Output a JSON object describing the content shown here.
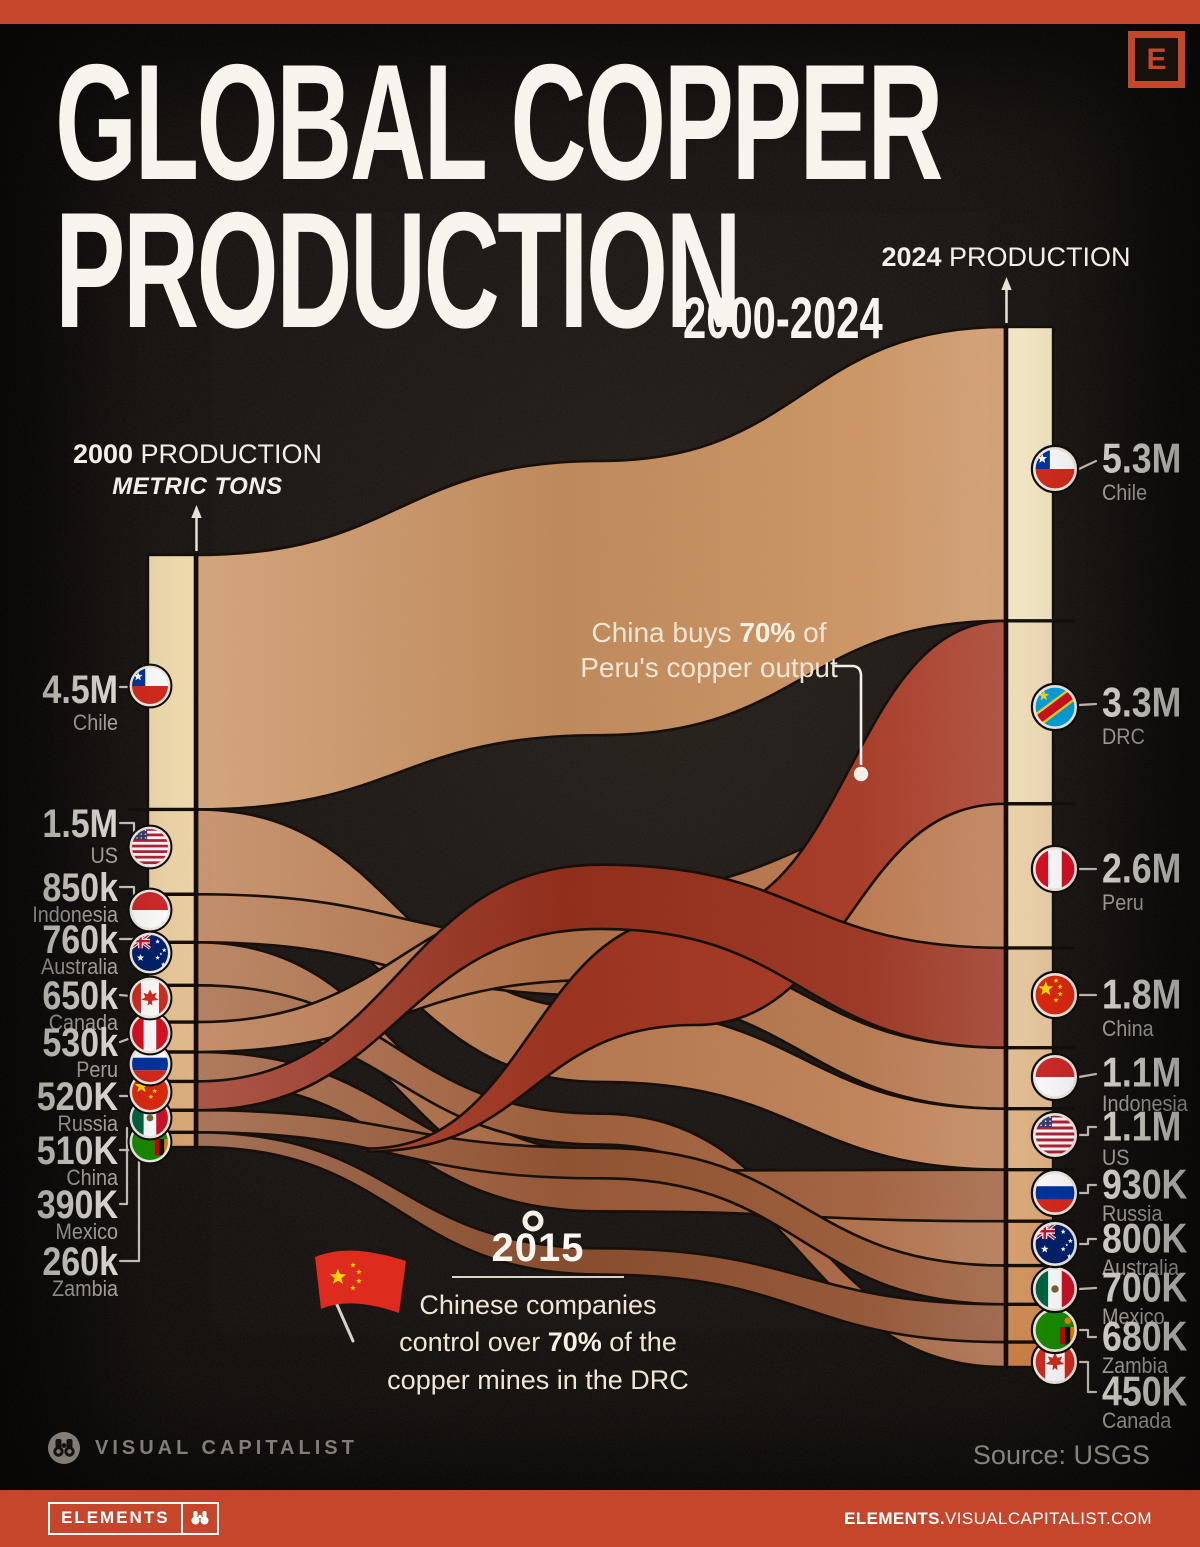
{
  "badge_e": "E",
  "title": {
    "line1": "GLOBAL COPPER",
    "line2": "PRODUCTION",
    "subtitle": "2000-2024"
  },
  "axis_left": {
    "year": "2000",
    "label": "PRODUCTION",
    "sub": "METRIC TONS"
  },
  "axis_right": {
    "year": "2024",
    "label": "PRODUCTION"
  },
  "chart_data": {
    "type": "sankey",
    "title": "GLOBAL COPPER PRODUCTION",
    "subtitle": "2000-2024",
    "unit": "metric tons",
    "years": [
      "2000",
      "2024"
    ],
    "left_axis": "2000 PRODUCTION (METRIC TONS)",
    "right_axis": "2024 PRODUCTION",
    "left": [
      {
        "id": "chile",
        "country": "Chile",
        "label": "4.5M",
        "value": 4500000
      },
      {
        "id": "us",
        "country": "US",
        "label": "1.5M",
        "value": 1500000
      },
      {
        "id": "indonesia",
        "country": "Indonesia",
        "label": "850k",
        "value": 850000
      },
      {
        "id": "australia",
        "country": "Australia",
        "label": "760k",
        "value": 760000
      },
      {
        "id": "canada",
        "country": "Canada",
        "label": "650k",
        "value": 650000
      },
      {
        "id": "peru",
        "country": "Peru",
        "label": "530k",
        "value": 530000
      },
      {
        "id": "russia",
        "country": "Russia",
        "label": "520K",
        "value": 520000
      },
      {
        "id": "china",
        "country": "China",
        "label": "510K",
        "value": 510000
      },
      {
        "id": "mexico",
        "country": "Mexico",
        "label": "390K",
        "value": 390000
      },
      {
        "id": "zambia",
        "country": "Zambia",
        "label": "260k",
        "value": 260000
      }
    ],
    "right": [
      {
        "id": "chile",
        "country": "Chile",
        "label": "5.3M",
        "value": 5300000
      },
      {
        "id": "drc",
        "country": "DRC",
        "label": "3.3M",
        "value": 3300000
      },
      {
        "id": "peru",
        "country": "Peru",
        "label": "2.6M",
        "value": 2600000
      },
      {
        "id": "china",
        "country": "China",
        "label": "1.8M",
        "value": 1800000
      },
      {
        "id": "indonesia",
        "country": "Indonesia",
        "label": "1.1M",
        "value": 1100000
      },
      {
        "id": "us",
        "country": "US",
        "label": "1.1M",
        "value": 1100000
      },
      {
        "id": "russia",
        "country": "Russia",
        "label": "930K",
        "value": 930000
      },
      {
        "id": "australia",
        "country": "Australia",
        "label": "800K",
        "value": 800000
      },
      {
        "id": "mexico",
        "country": "Mexico",
        "label": "700K",
        "value": 700000
      },
      {
        "id": "zambia",
        "country": "Zambia",
        "label": "680K",
        "value": 680000
      },
      {
        "id": "canada",
        "country": "Canada",
        "label": "450K",
        "value": 450000
      }
    ],
    "ribbon_colors": {
      "chile": "#c9905f",
      "us": "#bc7d52",
      "indonesia": "#b4744b",
      "australia": "#ac6b45",
      "canada": "#a4633f",
      "peru": "#b7744a",
      "russia": "#9d5c3a",
      "mexico": "#965634",
      "zambia": "#8e5031",
      "drc": "#a23520",
      "china": "#97301d"
    },
    "highlight_color": "#a23520",
    "bar_palette": {
      "left_top": "#f0dcae",
      "left_bottom": "#d7a06f",
      "right_top": "#f5e8c5",
      "right_bottom": "#cb8045"
    }
  },
  "annotation_peru": {
    "pre": "China buys ",
    "bold": "70%",
    "post": " of",
    "line2": "Peru's copper output"
  },
  "annotation_drc": {
    "year": "2015",
    "line1": "Chinese companies",
    "l2pre": "control over ",
    "l2bold": "70%",
    "l2post": " of the",
    "line3": "copper mines in the DRC"
  },
  "credit": "VISUAL CAPITALIST",
  "source": "Source: USGS",
  "footer": {
    "box_label": "ELEMENTS",
    "site_bold": "ELEMENTS.",
    "site_rest": "VISUALCAPITALIST.COM"
  },
  "colors": {
    "accent_red": "#c5462a",
    "background": "#17120f",
    "text_primary": "#f4f0e8",
    "text_muted": "#b9b3ab",
    "highlight_ribbon": "#a23520"
  }
}
